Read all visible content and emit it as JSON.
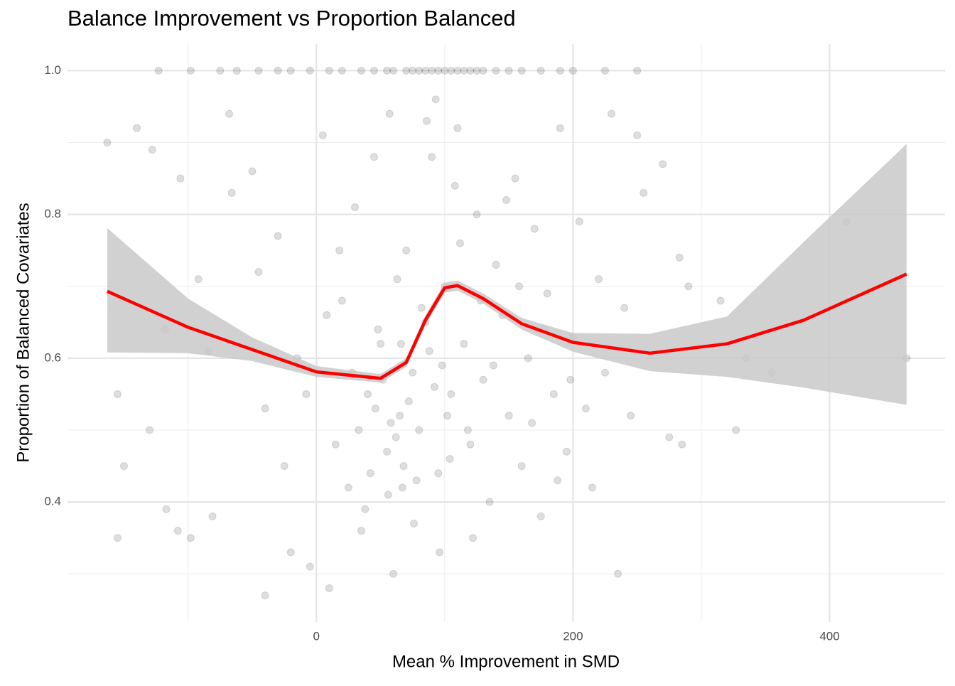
{
  "chart_data": {
    "type": "scatter",
    "title": "Balance Improvement vs Proportion Balanced",
    "x_label": "Mean % Improvement in SMD",
    "y_label": "Proportion of Balanced Covariates",
    "xlim": [
      -194,
      490
    ],
    "ylim": [
      0.233,
      1.037
    ],
    "xticks": [
      0,
      200,
      400
    ],
    "yticks": [
      0.4,
      0.6,
      0.8,
      {
        "value": 1,
        "label": "1.0"
      }
    ],
    "x_minor_grid": [
      -100,
      100,
      300
    ],
    "y_minor_grid": [
      0.3,
      0.5,
      0.7,
      0.9
    ],
    "grid": true,
    "points": {
      "color": "#000000",
      "opacity": 0.13,
      "x": [
        -123,
        -98,
        -75,
        -62,
        -45,
        -30,
        -20,
        -5,
        10,
        20,
        35,
        45,
        55,
        60,
        70,
        75,
        80,
        85,
        90,
        95,
        100,
        105,
        110,
        115,
        120,
        125,
        130,
        140,
        150,
        160,
        175,
        190,
        200,
        225,
        250,
        -163,
        -140,
        -128,
        -106,
        -68,
        -66,
        -92,
        -118,
        -130,
        -150,
        -155,
        -155,
        -117,
        -108,
        -98,
        -84,
        -81,
        -50,
        -45,
        -40,
        -40,
        -30,
        -20,
        -15,
        -5,
        5,
        10,
        15,
        20,
        25,
        30,
        35,
        40,
        45,
        50,
        55,
        57,
        60,
        65,
        67,
        70,
        75,
        80,
        85,
        90,
        95,
        100,
        105,
        110,
        115,
        120,
        125,
        130,
        135,
        140,
        145,
        150,
        155,
        160,
        165,
        170,
        175,
        180,
        185,
        190,
        195,
        200,
        205,
        210,
        215,
        220,
        225,
        230,
        235,
        240,
        245,
        250,
        255,
        270,
        275,
        285,
        283,
        290,
        315,
        327,
        335,
        355,
        413,
        460,
        62,
        58,
        68,
        72,
        52,
        88,
        92,
        98,
        78,
        82,
        108,
        112,
        102,
        118,
        63,
        48,
        28,
        18,
        8,
        -8,
        -25,
        33,
        42,
        38,
        96,
        104,
        122,
        128,
        138,
        148,
        158,
        168,
        178,
        188,
        198,
        93,
        86,
        76,
        66,
        56,
        46
      ],
      "y": [
        1,
        1,
        1,
        1,
        1,
        1,
        1,
        1,
        1,
        1,
        1,
        1,
        1,
        1,
        1,
        1,
        1,
        1,
        1,
        1,
        1,
        1,
        1,
        1,
        1,
        1,
        1,
        1,
        1,
        1,
        1,
        1,
        1,
        1,
        1,
        0.9,
        0.92,
        0.89,
        0.85,
        0.94,
        0.83,
        0.71,
        0.64,
        0.5,
        0.45,
        0.35,
        0.55,
        0.39,
        0.36,
        0.35,
        0.61,
        0.38,
        0.86,
        0.72,
        0.53,
        0.27,
        0.77,
        0.33,
        0.6,
        0.31,
        0.91,
        0.28,
        0.48,
        0.68,
        0.42,
        0.81,
        0.36,
        0.55,
        0.88,
        0.62,
        0.47,
        0.94,
        0.3,
        0.52,
        0.42,
        0.75,
        0.58,
        0.5,
        0.65,
        0.88,
        0.44,
        0.7,
        0.55,
        0.92,
        0.62,
        0.48,
        0.8,
        0.57,
        0.4,
        0.73,
        0.66,
        0.52,
        0.85,
        0.45,
        0.6,
        0.78,
        0.38,
        0.69,
        0.55,
        0.92,
        0.47,
        0.63,
        0.79,
        0.53,
        0.42,
        0.71,
        0.58,
        0.94,
        0.3,
        0.67,
        0.52,
        0.91,
        0.83,
        0.87,
        0.49,
        0.48,
        0.74,
        0.7,
        0.68,
        0.5,
        0.6,
        0.58,
        0.79,
        0.6,
        0.49,
        0.51,
        0.45,
        0.54,
        0.57,
        0.61,
        0.56,
        0.59,
        0.43,
        0.67,
        0.84,
        0.76,
        0.52,
        0.5,
        0.71,
        0.64,
        0.58,
        0.75,
        0.66,
        0.55,
        0.45,
        0.5,
        0.44,
        0.39,
        0.33,
        0.46,
        0.35,
        0.68,
        0.59,
        0.82,
        0.7,
        0.51,
        0.64,
        0.43,
        0.57,
        0.96,
        0.93,
        0.37,
        0.62,
        0.41,
        0.53
      ]
    },
    "smooth": {
      "color": "#ff0000",
      "band_color": "#c9c9c9",
      "x": [
        -163,
        -100,
        -50,
        0,
        50,
        70,
        85,
        100,
        110,
        130,
        160,
        200,
        260,
        320,
        380,
        460
      ],
      "y": [
        0.693,
        0.643,
        0.612,
        0.581,
        0.572,
        0.594,
        0.653,
        0.698,
        0.701,
        0.683,
        0.648,
        0.622,
        0.607,
        0.62,
        0.653,
        0.717
      ],
      "lower": [
        0.608,
        0.607,
        0.596,
        0.574,
        0.566,
        0.588,
        0.646,
        0.691,
        0.694,
        0.676,
        0.64,
        0.609,
        0.582,
        0.574,
        0.559,
        0.535
      ],
      "upper": [
        0.781,
        0.683,
        0.629,
        0.589,
        0.578,
        0.6,
        0.66,
        0.705,
        0.708,
        0.69,
        0.656,
        0.635,
        0.634,
        0.658,
        0.762,
        0.898
      ]
    }
  }
}
